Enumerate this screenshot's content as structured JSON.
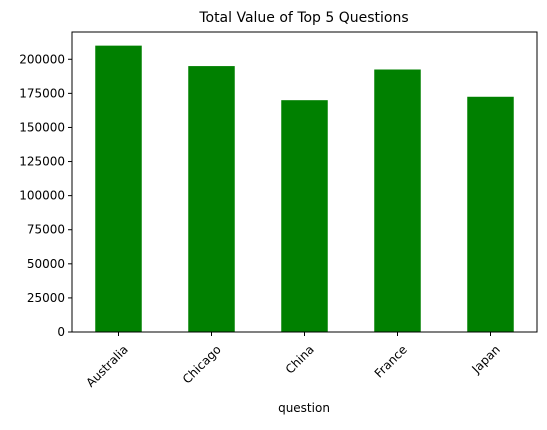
{
  "chart_data": {
    "type": "bar",
    "title": "Total Value of Top 5 Questions",
    "xlabel": "question",
    "ylabel": "",
    "categories": [
      "Australia",
      "Chicago",
      "China",
      "France",
      "Japan"
    ],
    "values": [
      210000,
      195000,
      170000,
      192500,
      172500
    ],
    "ylim": [
      0,
      220000
    ],
    "yticks": [
      0,
      25000,
      50000,
      75000,
      100000,
      125000,
      150000,
      175000,
      200000
    ],
    "ytick_labels": [
      "0",
      "25000",
      "50000",
      "75000",
      "100000",
      "125000",
      "150000",
      "175000",
      "200000"
    ],
    "bar_color": "#008000",
    "grid": false,
    "legend": "none",
    "xtick_rotation": 45
  }
}
